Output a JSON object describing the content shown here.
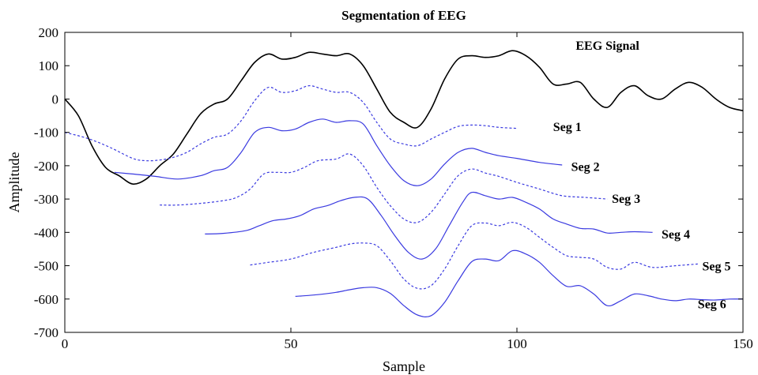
{
  "chart_data": {
    "type": "line",
    "title": "Segmentation of EEG",
    "xlabel": "Sample",
    "ylabel": "Amplitude",
    "xlim": [
      0,
      150
    ],
    "ylim": [
      -700,
      200
    ],
    "xticks": [
      0,
      50,
      100,
      150
    ],
    "yticks": [
      -700,
      -600,
      -500,
      -400,
      -300,
      -200,
      -100,
      0,
      100,
      200
    ],
    "grid": false,
    "legend": "none",
    "series": [
      {
        "name": "EEG Signal",
        "color": "#000000",
        "style": "solid",
        "x": [
          0,
          3,
          6,
          9,
          12,
          15,
          18,
          21,
          24,
          27,
          30,
          33,
          36,
          39,
          42,
          45,
          48,
          51,
          54,
          57,
          60,
          63,
          66,
          69,
          72,
          75,
          78,
          81,
          84,
          87,
          90,
          93,
          96,
          99,
          102,
          105,
          108,
          111,
          114,
          117,
          120,
          123,
          126,
          129,
          132,
          135,
          138,
          141,
          144,
          147,
          150
        ],
        "y": [
          0,
          -50,
          -140,
          -205,
          -230,
          -255,
          -240,
          -200,
          -165,
          -105,
          -45,
          -15,
          0,
          55,
          110,
          135,
          120,
          125,
          140,
          135,
          130,
          135,
          100,
          30,
          -40,
          -70,
          -85,
          -30,
          60,
          120,
          130,
          125,
          130,
          145,
          130,
          95,
          45,
          45,
          50,
          0,
          -25,
          20,
          40,
          10,
          0,
          30,
          50,
          35,
          0,
          -25,
          -35
        ]
      },
      {
        "name": "Seg 1",
        "color": "#3a3ae0",
        "style": "dashed",
        "x": [
          0,
          5,
          10,
          15,
          18,
          21,
          24,
          27,
          30,
          33,
          36,
          39,
          42,
          45,
          48,
          51,
          54,
          57,
          60,
          63,
          66,
          69,
          72,
          75,
          78,
          81,
          84,
          87,
          90,
          93,
          96,
          100
        ],
        "y": [
          -100,
          -118,
          -145,
          -178,
          -185,
          -183,
          -175,
          -160,
          -135,
          -115,
          -105,
          -65,
          -5,
          35,
          20,
          25,
          40,
          30,
          20,
          20,
          -10,
          -70,
          -120,
          -135,
          -140,
          -120,
          -100,
          -82,
          -78,
          -80,
          -85,
          -88
        ]
      },
      {
        "name": "Seg 2",
        "color": "#3a3ae0",
        "style": "solid",
        "x": [
          11,
          15,
          20,
          25,
          30,
          33,
          36,
          39,
          42,
          45,
          48,
          51,
          54,
          57,
          60,
          63,
          66,
          69,
          72,
          75,
          78,
          81,
          84,
          87,
          90,
          93,
          96,
          100,
          105,
          110
        ],
        "y": [
          -220,
          -225,
          -232,
          -240,
          -230,
          -215,
          -205,
          -160,
          -100,
          -85,
          -95,
          -90,
          -70,
          -60,
          -70,
          -65,
          -75,
          -140,
          -200,
          -245,
          -260,
          -240,
          -195,
          -160,
          -148,
          -160,
          -170,
          -178,
          -190,
          -198
        ]
      },
      {
        "name": "Seg 3",
        "color": "#3a3ae0",
        "style": "dashed",
        "x": [
          21,
          25,
          30,
          35,
          38,
          41,
          44,
          47,
          50,
          53,
          56,
          60,
          63,
          66,
          69,
          72,
          75,
          78,
          81,
          84,
          87,
          90,
          93,
          96,
          100,
          105,
          110,
          115,
          120
        ],
        "y": [
          -318,
          -318,
          -313,
          -305,
          -295,
          -270,
          -225,
          -220,
          -220,
          -205,
          -185,
          -180,
          -165,
          -200,
          -265,
          -320,
          -360,
          -370,
          -340,
          -285,
          -230,
          -210,
          -222,
          -232,
          -250,
          -270,
          -290,
          -295,
          -300
        ]
      },
      {
        "name": "Seg 4",
        "color": "#3a3ae0",
        "style": "solid",
        "x": [
          31,
          35,
          40,
          43,
          46,
          49,
          52,
          55,
          58,
          61,
          64,
          67,
          70,
          73,
          76,
          79,
          82,
          85,
          88,
          90,
          93,
          96,
          99,
          102,
          105,
          108,
          111,
          114,
          117,
          120,
          123,
          126,
          130
        ],
        "y": [
          -405,
          -403,
          -395,
          -380,
          -365,
          -360,
          -350,
          -330,
          -320,
          -305,
          -295,
          -300,
          -350,
          -410,
          -460,
          -480,
          -450,
          -380,
          -310,
          -280,
          -290,
          -300,
          -295,
          -310,
          -330,
          -360,
          -375,
          -388,
          -390,
          -402,
          -400,
          -398,
          -400
        ]
      },
      {
        "name": "Seg 5",
        "color": "#3a3ae0",
        "style": "dashed",
        "x": [
          41,
          45,
          50,
          55,
          60,
          63,
          66,
          69,
          72,
          75,
          78,
          81,
          84,
          87,
          90,
          93,
          96,
          99,
          102,
          105,
          108,
          111,
          114,
          117,
          120,
          123,
          126,
          130,
          135,
          140
        ],
        "y": [
          -498,
          -490,
          -480,
          -460,
          -445,
          -435,
          -432,
          -440,
          -485,
          -540,
          -568,
          -560,
          -510,
          -440,
          -380,
          -372,
          -380,
          -370,
          -385,
          -415,
          -445,
          -470,
          -475,
          -480,
          -505,
          -510,
          -490,
          -505,
          -500,
          -495
        ]
      },
      {
        "name": "Seg 6",
        "color": "#3a3ae0",
        "style": "solid",
        "x": [
          51,
          55,
          60,
          63,
          66,
          69,
          72,
          75,
          78,
          81,
          84,
          87,
          90,
          93,
          96,
          99,
          102,
          105,
          108,
          111,
          114,
          117,
          120,
          123,
          126,
          129,
          132,
          135,
          138,
          141,
          144,
          147,
          150
        ],
        "y": [
          -592,
          -588,
          -580,
          -572,
          -566,
          -566,
          -583,
          -620,
          -648,
          -650,
          -610,
          -545,
          -488,
          -480,
          -485,
          -455,
          -465,
          -490,
          -530,
          -562,
          -560,
          -585,
          -620,
          -605,
          -585,
          -590,
          -600,
          -605,
          -600,
          -602,
          -603,
          -600,
          -600
        ]
      }
    ],
    "annotations": [
      {
        "text": "EEG Signal",
        "x": 113,
        "y": 148
      },
      {
        "text": "Seg 1",
        "x": 108,
        "y": -96
      },
      {
        "text": "Seg 2",
        "x": 112,
        "y": -216
      },
      {
        "text": "Seg 3",
        "x": 121,
        "y": -312
      },
      {
        "text": "Seg 4",
        "x": 132,
        "y": -418
      },
      {
        "text": "Seg 5",
        "x": 141,
        "y": -514
      },
      {
        "text": "Seg 6",
        "x": 140,
        "y": -628
      }
    ]
  }
}
